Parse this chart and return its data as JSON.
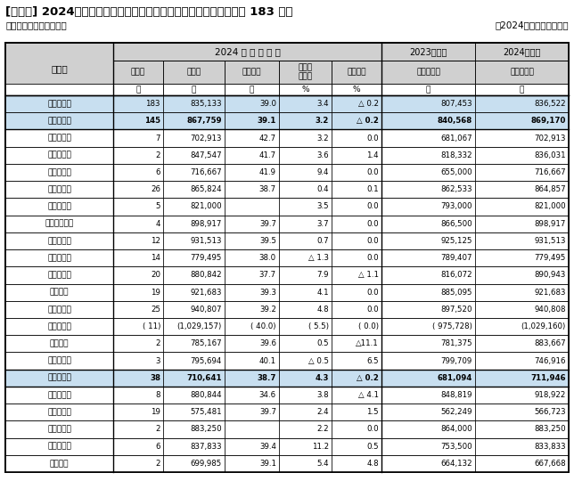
{
  "title": "[図表１] 2024年年末一時金の妥結水準集計（東証プライム上場企業 183 社）",
  "subtitle_left": "＜金額集計：単純平均＞",
  "subtitle_right": "－2024年９月９日現在－",
  "header_main": "2024 年 年 末 妥 結",
  "header_prev_year": "2023年年末",
  "header_summer": "2024年夏季",
  "col_units": [
    "",
    "社",
    "円",
    "歳",
    "%",
    "%",
    "円",
    "円"
  ],
  "sub_headers": [
    "社　数",
    "金　額",
    "平均年齢",
    "対前年\n同期比",
    "対前期比",
    "実　績　額",
    "実　績　額"
  ],
  "rows": [
    {
      "label": "全　産　業",
      "nums": [
        "183",
        "835,133",
        "39.0",
        "3.4",
        "△ 0.2",
        "807,453",
        "836,522"
      ],
      "highlight": true,
      "bold": false,
      "italic": false,
      "top_border": true
    },
    {
      "label": "製　造　業",
      "nums": [
        "145",
        "867,759",
        "39.1",
        "3.2",
        "△ 0.2",
        "840,568",
        "869,170"
      ],
      "highlight": true,
      "bold": true,
      "italic": false,
      "top_border": false
    },
    {
      "label": "水産・食品",
      "nums": [
        "7",
        "702,913",
        "42.7",
        "3.2",
        "0.0",
        "681,067",
        "702,913"
      ],
      "highlight": false,
      "bold": false,
      "italic": false,
      "top_border": true
    },
    {
      "label": "繊　　　維",
      "nums": [
        "2",
        "847,547",
        "41.7",
        "3.6",
        "1.4",
        "818,332",
        "836,031"
      ],
      "highlight": false,
      "bold": false,
      "italic": false,
      "top_border": false
    },
    {
      "label": "紙・パルプ",
      "nums": [
        "6",
        "716,667",
        "41.9",
        "9.4",
        "0.0",
        "655,000",
        "716,667"
      ],
      "highlight": false,
      "bold": false,
      "italic": false,
      "top_border": false
    },
    {
      "label": "化　　　学",
      "nums": [
        "26",
        "865,824",
        "38.7",
        "0.4",
        "0.1",
        "862,533",
        "864,857"
      ],
      "highlight": false,
      "bold": false,
      "italic": false,
      "top_border": false
    },
    {
      "label": "ゴ　　　ム",
      "nums": [
        "5",
        "821,000",
        "",
        "3.5",
        "0.0",
        "793,000",
        "821,000"
      ],
      "highlight": false,
      "bold": false,
      "italic": false,
      "top_border": false
    },
    {
      "label": "ガラス・土石",
      "nums": [
        "4",
        "898,917",
        "39.7",
        "3.7",
        "0.0",
        "866,500",
        "898,917"
      ],
      "highlight": false,
      "bold": false,
      "italic": false,
      "top_border": false
    },
    {
      "label": "鉄　　　鋼",
      "nums": [
        "12",
        "931,513",
        "39.5",
        "0.7",
        "0.0",
        "925,125",
        "931,513"
      ],
      "highlight": false,
      "bold": false,
      "italic": false,
      "top_border": false
    },
    {
      "label": "非鉄・金属",
      "nums": [
        "14",
        "779,495",
        "38.0",
        "△ 1.3",
        "0.0",
        "789,407",
        "779,495"
      ],
      "highlight": false,
      "bold": false,
      "italic": false,
      "top_border": false
    },
    {
      "label": "機　　　械",
      "nums": [
        "20",
        "880,842",
        "37.7",
        "7.9",
        "△ 1.1",
        "816,072",
        "890,943"
      ],
      "highlight": false,
      "bold": false,
      "italic": false,
      "top_border": false
    },
    {
      "label": "電気機器",
      "nums": [
        "19",
        "921,683",
        "39.3",
        "4.1",
        "0.0",
        "885,095",
        "921,683"
      ],
      "highlight": false,
      "bold": false,
      "italic": false,
      "top_border": false
    },
    {
      "label": "輸送用機器",
      "nums": [
        "25",
        "940,807",
        "39.2",
        "4.8",
        "0.0",
        "897,520",
        "940,808"
      ],
      "highlight": false,
      "bold": false,
      "italic": false,
      "top_border": false
    },
    {
      "label": "（自動車）",
      "nums": [
        "( 11)",
        "(1,029,157)",
        "( 40.0)",
        "( 5.5)",
        "( 0.0)",
        "( 975,728)",
        "(1,029,160)"
      ],
      "highlight": false,
      "bold": false,
      "italic": false,
      "top_border": false
    },
    {
      "label": "精密機器",
      "nums": [
        "2",
        "785,167",
        "39.6",
        "0.5",
        "△11.1",
        "781,375",
        "883,667"
      ],
      "highlight": false,
      "bold": false,
      "italic": false,
      "top_border": false
    },
    {
      "label": "その他製造",
      "nums": [
        "3",
        "795,694",
        "40.1",
        "△ 0.5",
        "6.5",
        "799,709",
        "746,916"
      ],
      "highlight": false,
      "bold": false,
      "italic": false,
      "top_border": false
    },
    {
      "label": "非　製造業",
      "nums": [
        "38",
        "710,641",
        "38.7",
        "4.3",
        "△ 0.2",
        "681,094",
        "711,946"
      ],
      "highlight": true,
      "bold": true,
      "italic": false,
      "top_border": true
    },
    {
      "label": "建　　　設",
      "nums": [
        "8",
        "880,844",
        "34.6",
        "3.8",
        "△ 4.1",
        "848,819",
        "918,922"
      ],
      "highlight": false,
      "bold": false,
      "italic": false,
      "top_border": true
    },
    {
      "label": "商　　　業",
      "nums": [
        "19",
        "575,481",
        "39.7",
        "2.4",
        "1.5",
        "562,249",
        "566,723"
      ],
      "highlight": false,
      "bold": false,
      "italic": false,
      "top_border": false
    },
    {
      "label": "情報・通信",
      "nums": [
        "2",
        "883,250",
        "",
        "2.2",
        "0.0",
        "864,000",
        "883,250"
      ],
      "highlight": false,
      "bold": false,
      "italic": false,
      "top_border": false
    },
    {
      "label": "電　　　力",
      "nums": [
        "6",
        "837,833",
        "39.4",
        "11.2",
        "0.5",
        "753,500",
        "833,833"
      ],
      "highlight": false,
      "bold": false,
      "italic": false,
      "top_border": false
    },
    {
      "label": "サービス",
      "nums": [
        "2",
        "699,985",
        "39.1",
        "5.4",
        "4.8",
        "664,132",
        "667,668"
      ],
      "highlight": false,
      "bold": false,
      "italic": false,
      "top_border": false
    }
  ],
  "highlight_color": "#c8dff0",
  "text_color": "#000000",
  "header_gray": "#d0d0d0"
}
